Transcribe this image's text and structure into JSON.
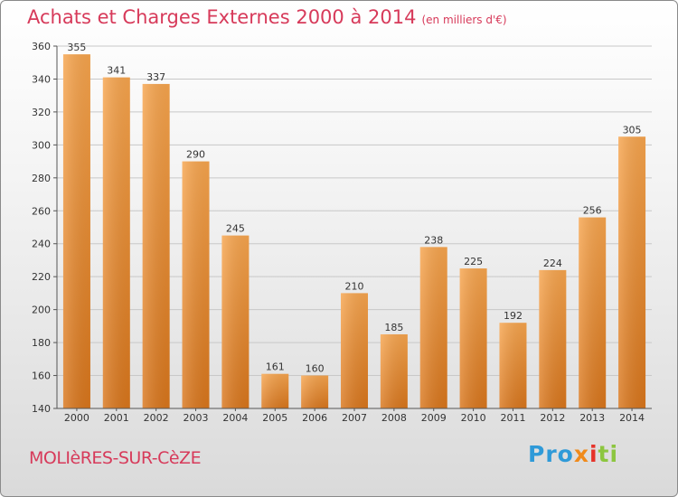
{
  "header": {
    "title": "Achats et Charges Externes 2000 à 2014",
    "unit": "(en milliers d'€)"
  },
  "footer": {
    "city": "MOLIèRES-SUR-CèZE",
    "logo": {
      "p1": "Pro",
      "p2": "x",
      "p3": "i",
      "p4": "ti"
    }
  },
  "colors": {
    "bar_light": "#f7a54e",
    "bar_dark": "#d9761c",
    "title": "#d73a5a",
    "grid": "#c8c8c8"
  },
  "chart_data": {
    "type": "bar",
    "title": "Achats et Charges Externes 2000 à 2014",
    "subtitle": "(en milliers d'€)",
    "categories": [
      "2000",
      "2001",
      "2002",
      "2003",
      "2004",
      "2005",
      "2006",
      "2007",
      "2008",
      "2009",
      "2010",
      "2011",
      "2012",
      "2013",
      "2014"
    ],
    "values": [
      355,
      341,
      337,
      290,
      245,
      161,
      160,
      210,
      185,
      238,
      225,
      192,
      224,
      256,
      305
    ],
    "yticks": [
      140,
      160,
      180,
      200,
      220,
      240,
      260,
      280,
      300,
      320,
      340,
      360
    ],
    "ylim": [
      140,
      360
    ],
    "grid": true,
    "xlabel": "",
    "ylabel": ""
  }
}
